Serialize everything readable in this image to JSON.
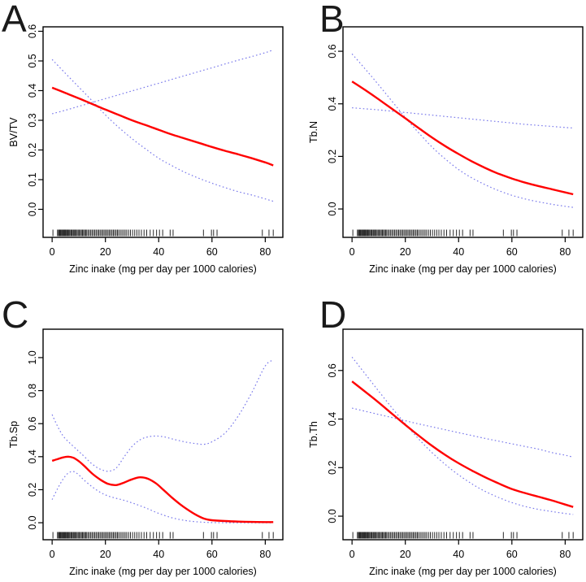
{
  "figure": {
    "description": "Four-panel GAM dose-response figure: fitted red curves with blue dotted 95% confidence bands and data rug versus zinc intake",
    "accent_color": "#ff0000",
    "ci_color": "#6666e8",
    "axis_color": "#000000",
    "rug_color": "#111111",
    "background": "#ffffff"
  },
  "rug_x": [
    0.3,
    2.0,
    2.4,
    2.7,
    3.0,
    3.2,
    3.5,
    3.7,
    4.0,
    4.2,
    4.5,
    4.7,
    5.0,
    5.2,
    5.5,
    5.8,
    6.0,
    6.3,
    6.6,
    7.0,
    7.3,
    7.6,
    8.0,
    8.3,
    8.7,
    9.0,
    9.4,
    9.8,
    10.2,
    10.6,
    11.0,
    11.4,
    11.8,
    12.2,
    12.6,
    13.0,
    13.5,
    14.0,
    14.5,
    15.0,
    15.5,
    16.0,
    16.5,
    17.0,
    17.5,
    18.0,
    18.5,
    19.0,
    19.5,
    20.0,
    20.5,
    21.0,
    21.5,
    22.0,
    22.5,
    23.0,
    23.5,
    24.0,
    24.5,
    25.0,
    25.6,
    26.2,
    26.8,
    27.4,
    28.0,
    28.7,
    29.4,
    30.2,
    31.0,
    31.8,
    32.6,
    33.5,
    34.5,
    35.5,
    36.8,
    38.0,
    39.2,
    40.3,
    41.5,
    44.3,
    45.4,
    56.8,
    59.8,
    60.6,
    61.9,
    78.9,
    81.4,
    83.0
  ],
  "chart_data": [
    {
      "type": "line",
      "panel_label": "A",
      "ylabel": "BV/TV",
      "xlabel": "Zinc inake (mg per day per 1000 calories)",
      "xlim": [
        -3.4,
        86.6
      ],
      "ylim": [
        -0.0945,
        0.615
      ],
      "xticks": [
        0,
        20,
        40,
        60,
        80
      ],
      "xtick_labels": [
        "0",
        "20",
        "40",
        "60",
        "80"
      ],
      "yticks": [
        0.0,
        0.1,
        0.2,
        0.3,
        0.4,
        0.5,
        0.6
      ],
      "ytick_labels": [
        "0.0",
        "0.1",
        "0.2",
        "0.3",
        "0.4",
        "0.5",
        "0.6"
      ],
      "legend": "none",
      "grid": false,
      "series": [
        {
          "name": "upper-ci",
          "style": "dotted",
          "x": [
            0,
            5,
            10,
            15,
            20,
            25,
            30,
            35,
            40,
            45,
            50,
            55,
            60,
            65,
            70,
            75,
            80,
            83
          ],
          "y": [
            0.322,
            0.334,
            0.347,
            0.36,
            0.373,
            0.386,
            0.399,
            0.412,
            0.425,
            0.438,
            0.451,
            0.464,
            0.477,
            0.49,
            0.503,
            0.515,
            0.528,
            0.537
          ]
        },
        {
          "name": "lower-ci",
          "style": "dotted",
          "x": [
            0,
            5,
            10,
            15,
            20,
            25,
            30,
            35,
            40,
            45,
            50,
            55,
            60,
            65,
            70,
            75,
            80,
            83
          ],
          "y": [
            0.505,
            0.458,
            0.412,
            0.366,
            0.318,
            0.276,
            0.238,
            0.204,
            0.172,
            0.147,
            0.124,
            0.105,
            0.088,
            0.073,
            0.059,
            0.048,
            0.035,
            0.027
          ]
        },
        {
          "name": "fitted",
          "style": "solid",
          "x": [
            0,
            5,
            10,
            15,
            20,
            25,
            30,
            35,
            40,
            45,
            50,
            55,
            60,
            65,
            70,
            75,
            80,
            83
          ],
          "y": [
            0.41,
            0.392,
            0.374,
            0.355,
            0.336,
            0.318,
            0.3,
            0.284,
            0.268,
            0.252,
            0.238,
            0.224,
            0.21,
            0.197,
            0.185,
            0.172,
            0.158,
            0.148
          ]
        }
      ]
    },
    {
      "type": "line",
      "panel_label": "B",
      "ylabel": "Tb.N",
      "xlabel": "Zinc inake (mg per day per 1000 calories)",
      "xlim": [
        -3.4,
        86.6
      ],
      "ylim": [
        -0.108,
        0.693
      ],
      "xticks": [
        0,
        20,
        40,
        60,
        80
      ],
      "xtick_labels": [
        "0",
        "20",
        "40",
        "60",
        "80"
      ],
      "yticks": [
        0.0,
        0.2,
        0.4,
        0.6
      ],
      "ytick_labels": [
        "0.0",
        "0.2",
        "0.4",
        "0.6"
      ],
      "legend": "none",
      "grid": false,
      "series": [
        {
          "name": "upper-ci",
          "style": "dotted",
          "x": [
            0,
            5,
            10,
            15,
            20,
            25,
            30,
            35,
            40,
            45,
            50,
            55,
            60,
            65,
            70,
            75,
            80,
            83
          ],
          "y": [
            0.385,
            0.381,
            0.377,
            0.372,
            0.367,
            0.362,
            0.357,
            0.352,
            0.347,
            0.342,
            0.337,
            0.332,
            0.327,
            0.322,
            0.318,
            0.314,
            0.31,
            0.308
          ]
        },
        {
          "name": "lower-ci",
          "style": "dotted",
          "x": [
            0,
            5,
            10,
            15,
            20,
            25,
            30,
            35,
            40,
            45,
            50,
            55,
            60,
            65,
            70,
            75,
            80,
            83
          ],
          "y": [
            0.59,
            0.532,
            0.472,
            0.41,
            0.348,
            0.29,
            0.236,
            0.19,
            0.15,
            0.118,
            0.092,
            0.07,
            0.052,
            0.038,
            0.027,
            0.018,
            0.01,
            0.006
          ]
        },
        {
          "name": "fitted",
          "style": "solid",
          "x": [
            0,
            5,
            10,
            15,
            20,
            25,
            30,
            35,
            40,
            45,
            50,
            55,
            60,
            65,
            70,
            75,
            80,
            83
          ],
          "y": [
            0.485,
            0.452,
            0.417,
            0.381,
            0.345,
            0.308,
            0.272,
            0.239,
            0.209,
            0.181,
            0.156,
            0.134,
            0.116,
            0.1,
            0.087,
            0.075,
            0.063,
            0.056
          ]
        }
      ]
    },
    {
      "type": "line",
      "panel_label": "C",
      "ylabel": "Tb.Sp",
      "xlabel": "Zinc inake (mg per day per 1000 calories)",
      "xlim": [
        -3.4,
        86.6
      ],
      "ylim": [
        -0.103,
        1.172
      ],
      "xticks": [
        0,
        20,
        40,
        60,
        80
      ],
      "xtick_labels": [
        "0",
        "20",
        "40",
        "60",
        "80"
      ],
      "yticks": [
        0.0,
        0.2,
        0.4,
        0.6,
        0.8,
        1.0
      ],
      "ytick_labels": [
        "0.0",
        "0.2",
        "0.4",
        "0.6",
        "0.8",
        "1.0"
      ],
      "legend": "none",
      "grid": false,
      "series": [
        {
          "name": "upper-ci",
          "style": "dotted",
          "x": [
            0,
            2,
            4,
            6,
            8,
            10,
            12,
            15,
            18,
            21,
            24,
            27,
            30,
            33,
            36,
            39,
            42,
            45,
            48,
            51,
            54,
            57,
            60,
            65,
            70,
            75,
            80,
            83
          ],
          "y": [
            0.655,
            0.585,
            0.528,
            0.492,
            0.462,
            0.432,
            0.402,
            0.356,
            0.325,
            0.312,
            0.33,
            0.398,
            0.462,
            0.502,
            0.52,
            0.525,
            0.52,
            0.508,
            0.496,
            0.486,
            0.479,
            0.475,
            0.49,
            0.545,
            0.65,
            0.79,
            0.95,
            0.985
          ]
        },
        {
          "name": "lower-ci",
          "style": "dotted",
          "x": [
            0,
            2,
            4,
            6,
            8,
            10,
            12,
            15,
            18,
            21,
            24,
            27,
            30,
            33,
            36,
            39,
            42,
            45,
            48,
            51,
            54,
            57,
            60,
            65,
            70,
            75,
            80,
            83
          ],
          "y": [
            0.14,
            0.205,
            0.262,
            0.3,
            0.31,
            0.29,
            0.258,
            0.218,
            0.185,
            0.162,
            0.148,
            0.136,
            0.12,
            0.103,
            0.084,
            0.063,
            0.045,
            0.03,
            0.019,
            0.011,
            0.006,
            0.003,
            0.001,
            0.0,
            0.0,
            0.0,
            0.0,
            0.0
          ]
        },
        {
          "name": "fitted",
          "style": "solid",
          "x": [
            0,
            2,
            4,
            6,
            8,
            10,
            12,
            15,
            18,
            21,
            24,
            27,
            30,
            33,
            36,
            39,
            42,
            45,
            48,
            51,
            54,
            57,
            60,
            65,
            70,
            75,
            80,
            83
          ],
          "y": [
            0.375,
            0.385,
            0.395,
            0.4,
            0.393,
            0.373,
            0.345,
            0.298,
            0.262,
            0.235,
            0.228,
            0.243,
            0.263,
            0.275,
            0.266,
            0.238,
            0.196,
            0.152,
            0.112,
            0.078,
            0.048,
            0.025,
            0.015,
            0.01,
            0.007,
            0.005,
            0.004,
            0.004
          ]
        }
      ]
    },
    {
      "type": "line",
      "panel_label": "D",
      "ylabel": "Tb.Th",
      "xlabel": "Zinc inake (mg per day per 1000 calories)",
      "xlim": [
        -3.4,
        86.6
      ],
      "ylim": [
        -0.097,
        0.77
      ],
      "xticks": [
        0,
        20,
        40,
        60,
        80
      ],
      "xtick_labels": [
        "0",
        "20",
        "40",
        "60",
        "80"
      ],
      "yticks": [
        0.0,
        0.2,
        0.4,
        0.6
      ],
      "ytick_labels": [
        "0.0",
        "0.2",
        "0.4",
        "0.6"
      ],
      "legend": "none",
      "grid": false,
      "series": [
        {
          "name": "upper-ci",
          "style": "dotted",
          "x": [
            0,
            5,
            10,
            15,
            20,
            25,
            30,
            35,
            40,
            45,
            50,
            55,
            60,
            65,
            70,
            75,
            80,
            83
          ],
          "y": [
            0.445,
            0.432,
            0.419,
            0.406,
            0.393,
            0.38,
            0.368,
            0.356,
            0.344,
            0.332,
            0.32,
            0.309,
            0.298,
            0.287,
            0.276,
            0.262,
            0.251,
            0.243
          ]
        },
        {
          "name": "lower-ci",
          "style": "dotted",
          "x": [
            0,
            5,
            10,
            15,
            20,
            25,
            30,
            35,
            40,
            45,
            50,
            55,
            60,
            65,
            70,
            75,
            80,
            83
          ],
          "y": [
            0.655,
            0.585,
            0.515,
            0.446,
            0.38,
            0.318,
            0.262,
            0.213,
            0.17,
            0.133,
            0.102,
            0.077,
            0.056,
            0.04,
            0.028,
            0.019,
            0.011,
            0.007
          ]
        },
        {
          "name": "fitted",
          "style": "solid",
          "x": [
            0,
            5,
            10,
            15,
            20,
            25,
            30,
            35,
            40,
            45,
            50,
            55,
            60,
            65,
            70,
            75,
            80,
            83
          ],
          "y": [
            0.555,
            0.512,
            0.468,
            0.422,
            0.376,
            0.332,
            0.29,
            0.252,
            0.218,
            0.188,
            0.16,
            0.135,
            0.112,
            0.095,
            0.08,
            0.065,
            0.048,
            0.038
          ]
        }
      ]
    }
  ]
}
